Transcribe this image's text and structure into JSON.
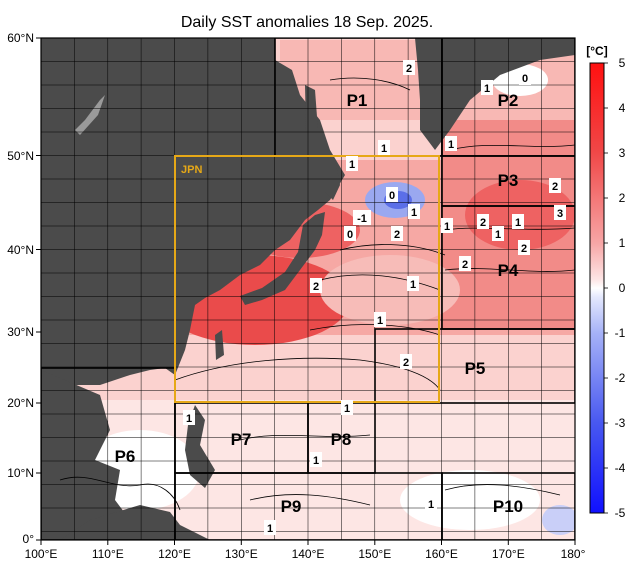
{
  "title": "Daily SST anomalies 18 Sep. 2025.",
  "lat_labels": [
    "60°N",
    "50°N",
    "40°N",
    "30°N",
    "20°N",
    "10°N",
    "0°"
  ],
  "lon_labels": [
    "100°E",
    "110°E",
    "120°E",
    "130°E",
    "140°E",
    "150°E",
    "160°E",
    "170°E",
    "180°"
  ],
  "regions": {
    "jpn": "JPN",
    "p1": "P1",
    "p2": "P2",
    "p3": "P3",
    "p4": "P4",
    "p5": "P5",
    "p6": "P6",
    "p7": "P7",
    "p8": "P8",
    "p9": "P9",
    "p10": "P10"
  },
  "colorbar": {
    "unit": "[°C]",
    "ticks": [
      "5",
      "4",
      "3",
      "2",
      "1",
      "0",
      "-1",
      "-2",
      "-3",
      "-4",
      "-5"
    ]
  },
  "contour_labels": [
    "2",
    "1",
    "0",
    "1",
    "1",
    "1",
    "0",
    "-1",
    "0",
    "1",
    "2",
    "1",
    "1",
    "2",
    "1",
    "2",
    "2",
    "3",
    "2",
    "2",
    "1",
    "1",
    "2",
    "1",
    "1",
    "1",
    "1",
    "1"
  ],
  "colors": {
    "land": "#4b4b4b",
    "jpn_box": "#e6a817",
    "anomaly_warm_strong": "#e8323c",
    "anomaly_warm": "#f4a09b",
    "anomaly_neutral": "#ffffff",
    "anomaly_cool": "#5b6fe8"
  }
}
